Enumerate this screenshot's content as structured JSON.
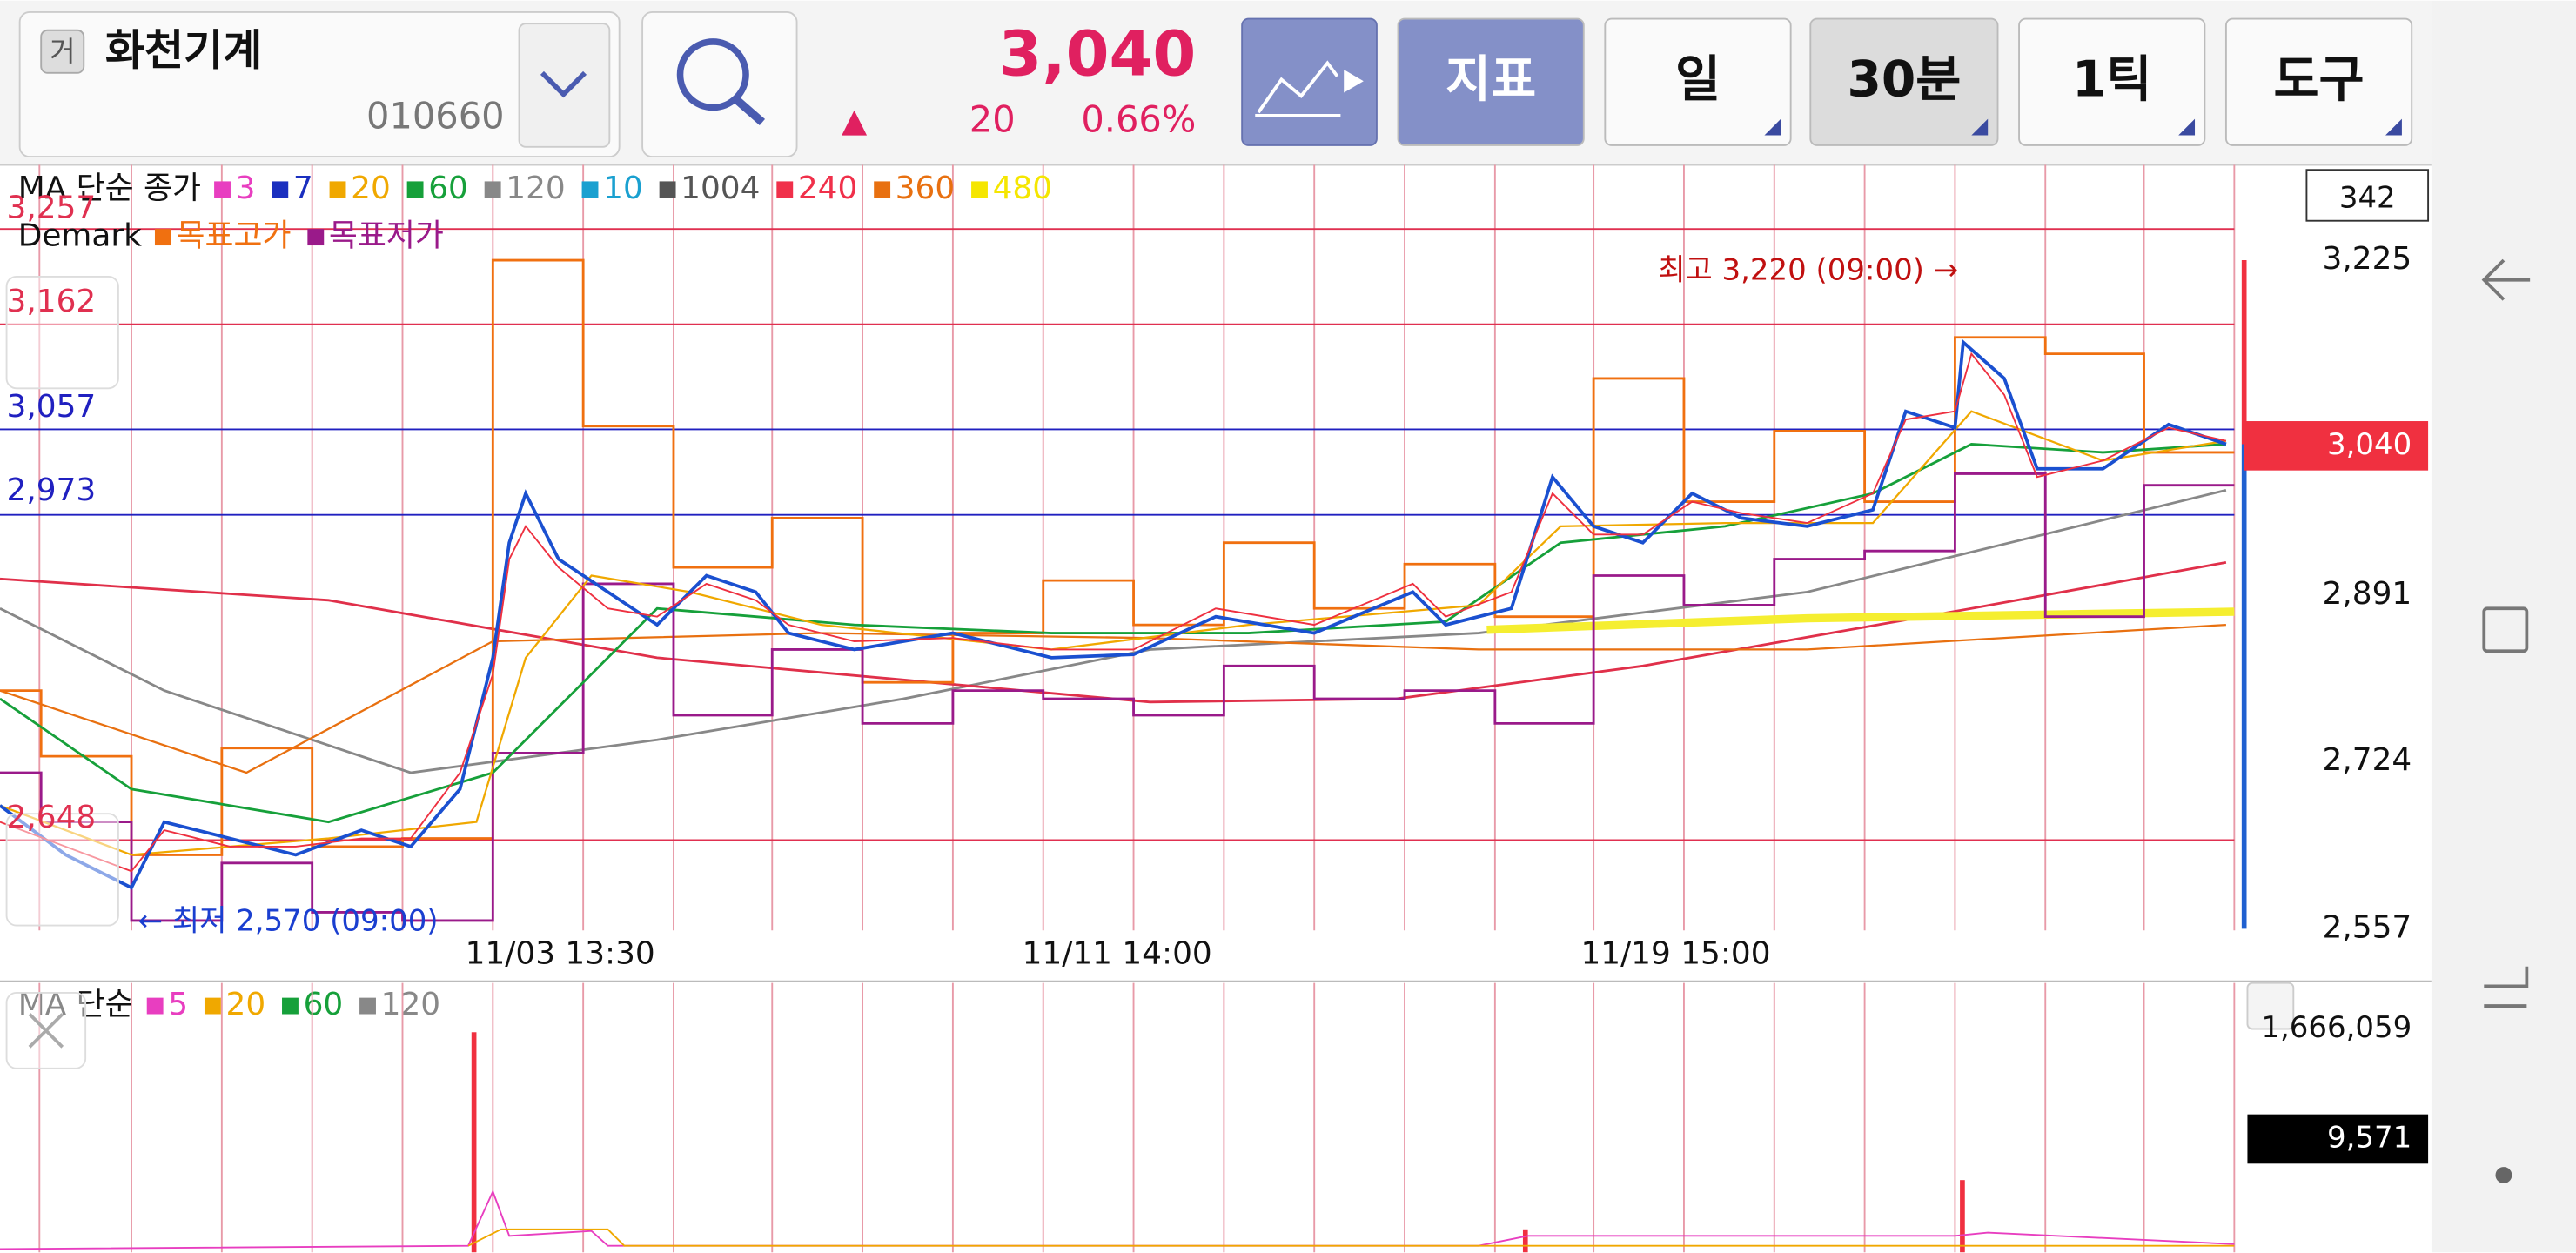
{
  "header": {
    "badge": "거",
    "name": "화천기계",
    "code": "010660",
    "price": "3,040",
    "arrow": "▲",
    "change": "20",
    "change_pct": "0.66%",
    "buttons": [
      "지표",
      "일",
      "30분",
      "1틱",
      "도구"
    ]
  },
  "price_chart": {
    "legend": {
      "title": "MA 단순 종가",
      "items": [
        {
          "name": "3",
          "color": "#e83ec0"
        },
        {
          "name": "7",
          "color": "#1a2fbf"
        },
        {
          "name": "20",
          "color": "#f0a800"
        },
        {
          "name": "60",
          "color": "#16a03a"
        },
        {
          "name": "120",
          "color": "#888888"
        },
        {
          "name": "10",
          "color": "#1aa0d0"
        },
        {
          "name": "1004",
          "color": "#555555"
        },
        {
          "name": "240",
          "color": "#f0304a"
        },
        {
          "name": "360",
          "color": "#e87010"
        },
        {
          "name": "480",
          "color": "#f5e600"
        }
      ]
    },
    "demark_legend": {
      "title": "Demark",
      "items": [
        {
          "name": "목표고가",
          "color": "#f07010"
        },
        {
          "name": "목표저가",
          "color": "#9a1a8a"
        }
      ]
    },
    "line_labels": [
      {
        "text": "3,257",
        "color": "#e03050"
      },
      {
        "text": "3,162",
        "color": "#e03050"
      },
      {
        "text": "3,057",
        "color": "#2020c0"
      },
      {
        "text": "2,973",
        "color": "#2020c0"
      },
      {
        "text": "2,648",
        "color": "#e03050"
      }
    ],
    "right_axis": [
      "3,225",
      "2,891",
      "2,724",
      "2,557"
    ],
    "count_box": "342",
    "current_price": "3,040",
    "high_note": "최고 3,220 (09:00) →",
    "low_note": "← 최저 2,570 (09:00)",
    "x_labels": [
      "11/03 13:30",
      "11/11 14:00",
      "11/19 15:00"
    ]
  },
  "volume_chart": {
    "legend": {
      "title": "MA 단순",
      "items": [
        {
          "name": "5",
          "color": "#e83ec0"
        },
        {
          "name": "20",
          "color": "#f0a800"
        },
        {
          "name": "60",
          "color": "#16a03a"
        },
        {
          "name": "120",
          "color": "#888888"
        }
      ]
    },
    "axis_max": "1,666,059",
    "current_volume": "9,571"
  }
}
